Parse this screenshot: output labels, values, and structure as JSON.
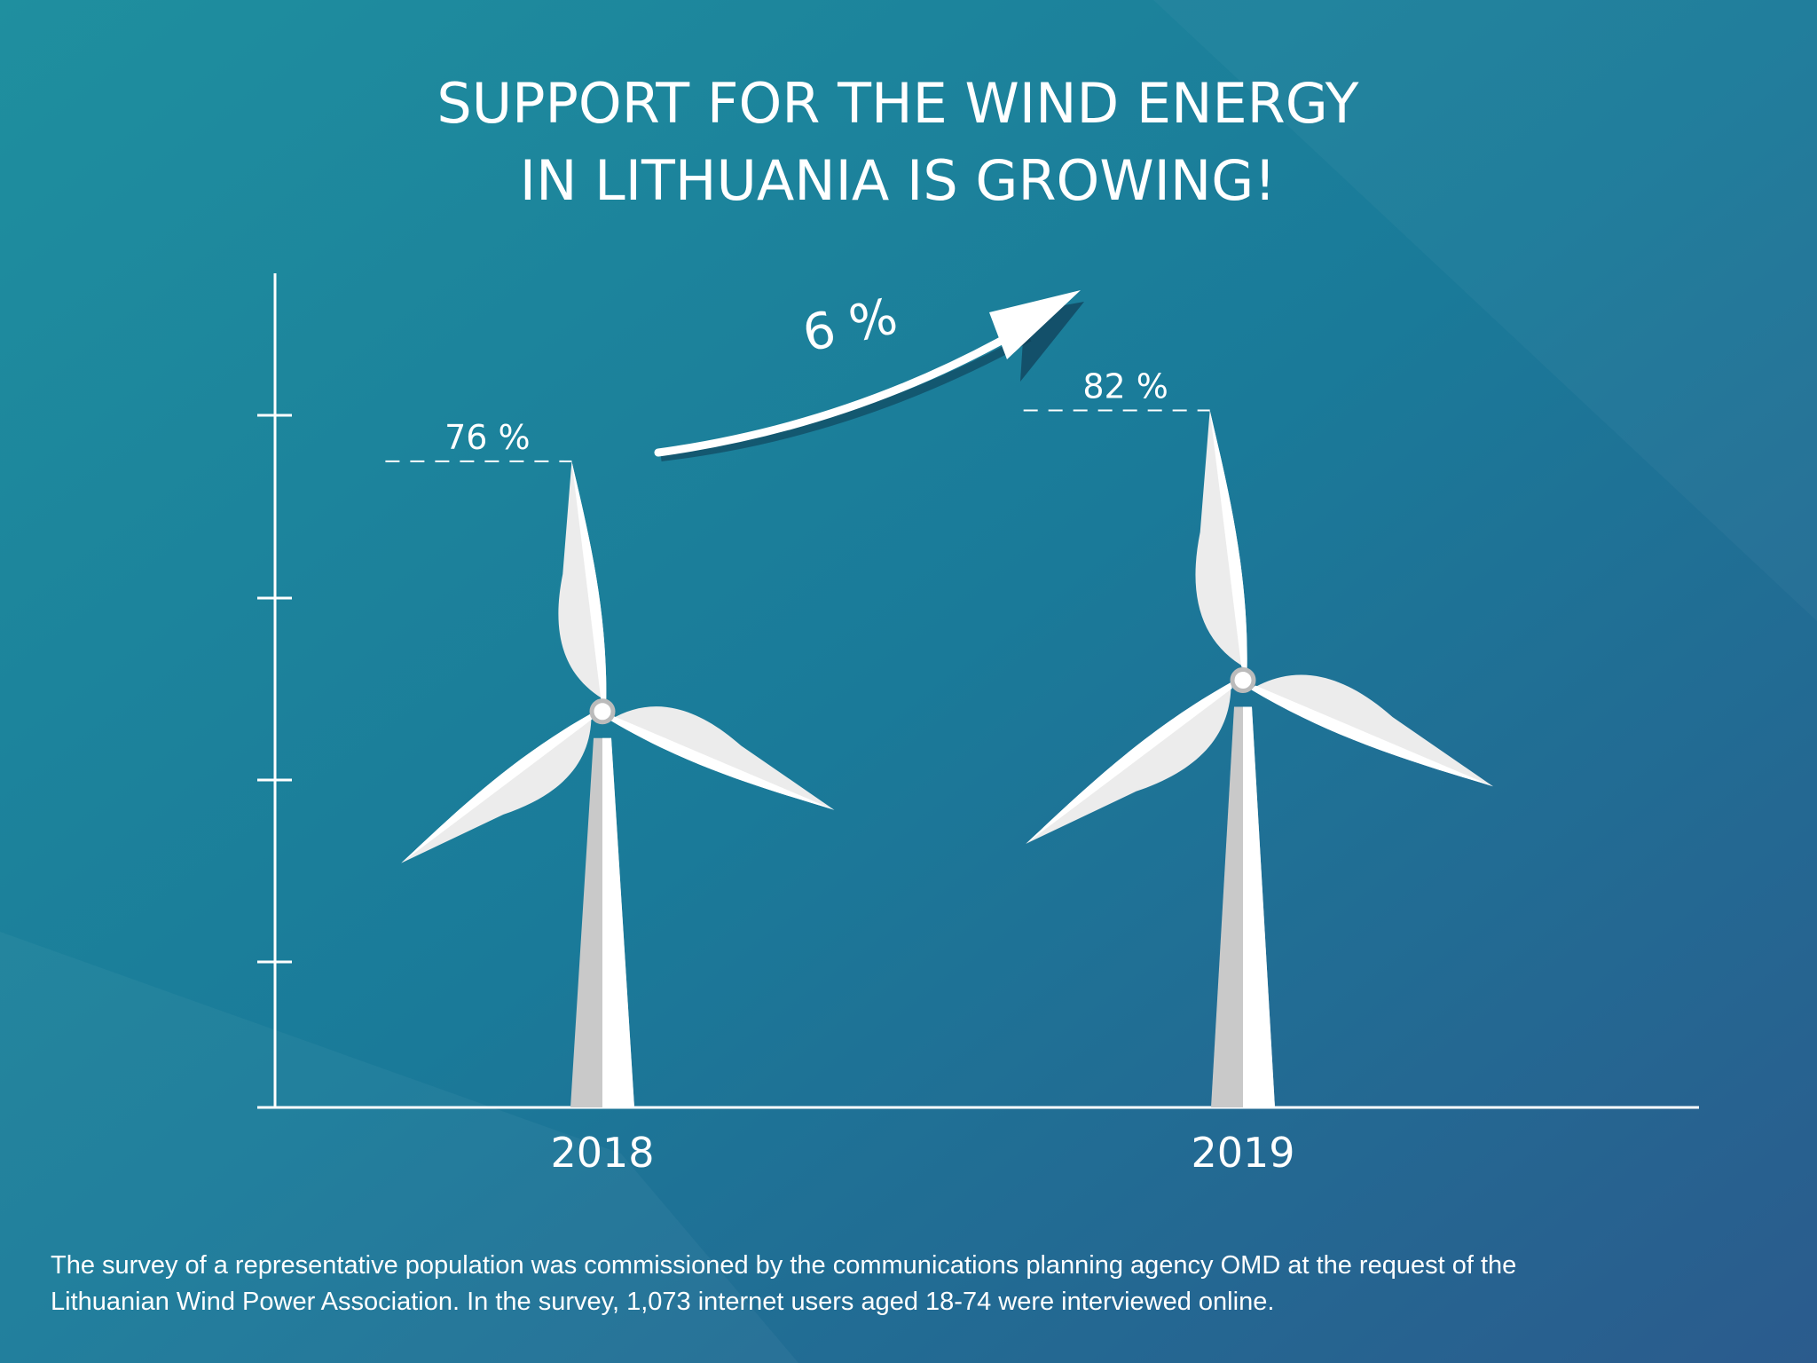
{
  "chart_data": {
    "type": "turbine",
    "title": [
      "SUPPORT FOR THE WIND ENERGY",
      "IN LITHUANIA IS GROWING!"
    ],
    "categories": [
      "2018",
      "2019"
    ],
    "values": [
      76,
      82
    ],
    "value_labels": [
      "76 %",
      "82 %"
    ],
    "annotation": "6 %",
    "color": "#ececec",
    "ylim": [
      0,
      100
    ],
    "footnote": [
      "The survey of a representative population was commissioned by the communications planning agency OMD at the request of the",
      "Lithuanian Wind Power Association. In the survey, 1,073 internet users aged 18-74 were interviewed online."
    ]
  }
}
